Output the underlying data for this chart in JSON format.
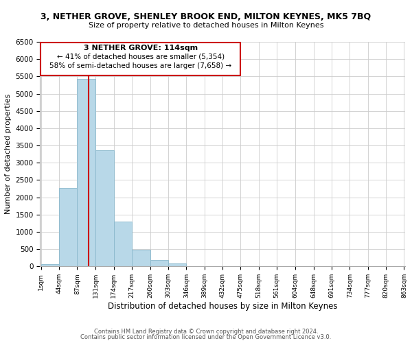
{
  "title": "3, NETHER GROVE, SHENLEY BROOK END, MILTON KEYNES, MK5 7BQ",
  "subtitle": "Size of property relative to detached houses in Milton Keynes",
  "xlabel": "Distribution of detached houses by size in Milton Keynes",
  "ylabel": "Number of detached properties",
  "bar_color": "#b8d8e8",
  "bar_edge_color": "#8ab8cc",
  "vline_color": "#cc0000",
  "vline_x": 114,
  "annotation_title": "3 NETHER GROVE: 114sqm",
  "annotation_line1": "← 41% of detached houses are smaller (5,354)",
  "annotation_line2": "58% of semi-detached houses are larger (7,658) →",
  "footer_line1": "Contains HM Land Registry data © Crown copyright and database right 2024.",
  "footer_line2": "Contains public sector information licensed under the Open Government Licence v3.0.",
  "bin_edges": [
    1,
    44,
    87,
    131,
    174,
    217,
    260,
    303,
    346,
    389,
    432,
    475,
    518,
    561,
    604,
    648,
    691,
    734,
    777,
    820,
    863
  ],
  "bin_heights": [
    75,
    2280,
    5430,
    3370,
    1290,
    480,
    185,
    90,
    0,
    0,
    0,
    0,
    0,
    0,
    0,
    0,
    0,
    0,
    0,
    0
  ],
  "ylim": [
    0,
    6500
  ],
  "yticks": [
    0,
    500,
    1000,
    1500,
    2000,
    2500,
    3000,
    3500,
    4000,
    4500,
    5000,
    5500,
    6000,
    6500
  ],
  "background_color": "#ffffff",
  "grid_color": "#cccccc"
}
